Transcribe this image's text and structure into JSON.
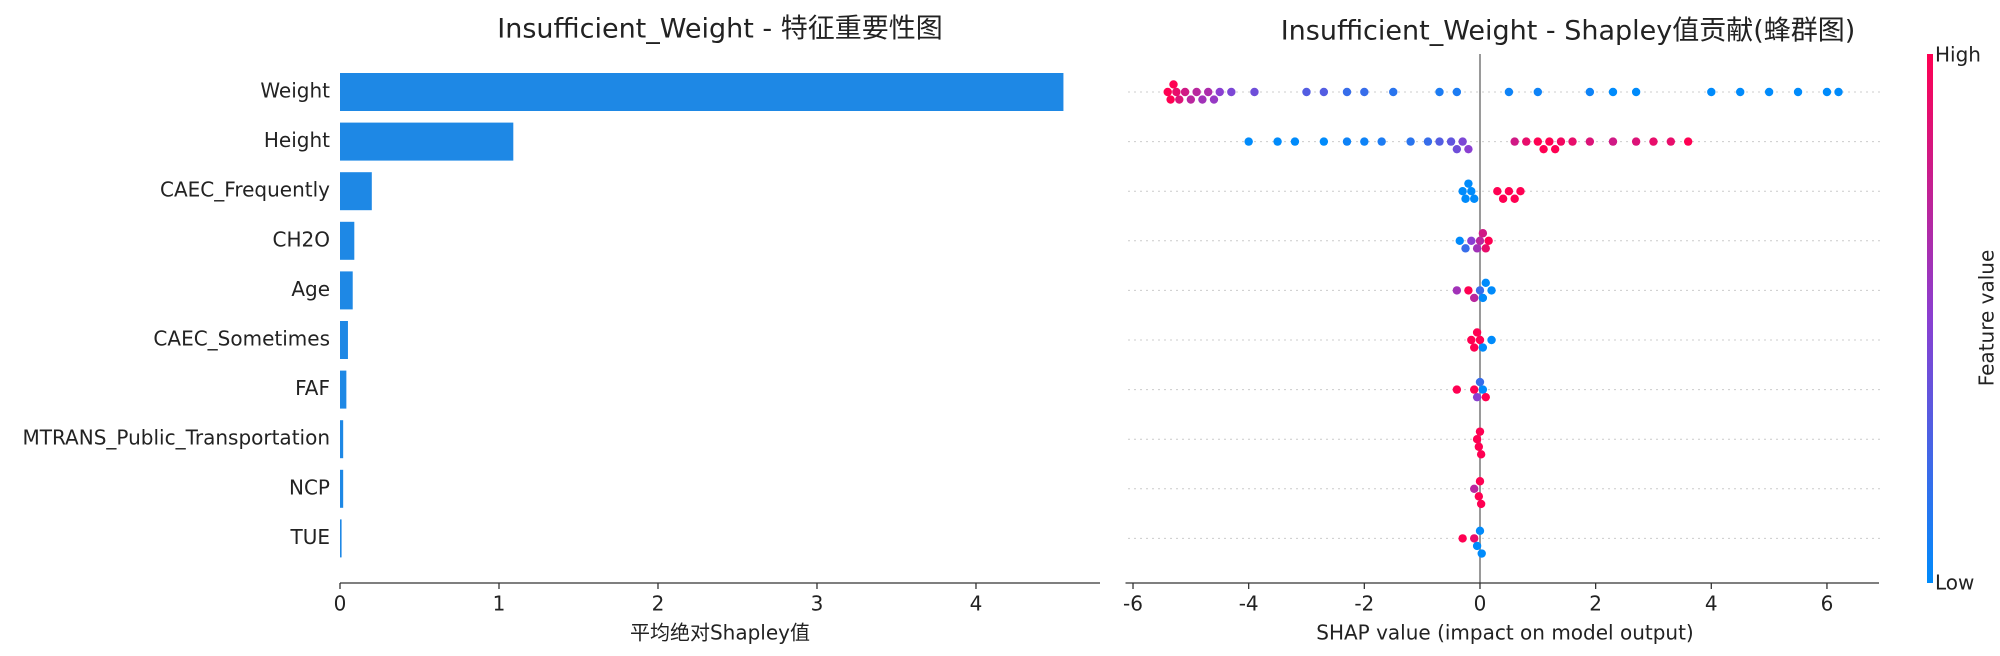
{
  "chart_data": [
    {
      "type": "barh",
      "title": "Insufficient_Weight - 特征重要性图",
      "xlabel": "平均绝对Shapley值",
      "categories": [
        "Weight",
        "Height",
        "CAEC_Frequently",
        "CH2O",
        "Age",
        "CAEC_Sometimes",
        "FAF",
        "MTRANS_Public_Transportation",
        "NCP",
        "TUE"
      ],
      "values": [
        4.55,
        1.09,
        0.2,
        0.09,
        0.08,
        0.05,
        0.04,
        0.02,
        0.02,
        0.01
      ],
      "color": "#1e88e5",
      "xlim": [
        0,
        4.78
      ],
      "xticks": [
        0,
        1,
        2,
        3,
        4
      ]
    },
    {
      "type": "beeswarm",
      "title": "Insufficient_Weight - Shapley值贡献(蜂群图)",
      "xlabel": "SHAP value (impact on model output)",
      "xlim": [
        -6.13,
        6.9
      ],
      "xticks": [
        -6,
        -4,
        -2,
        0,
        2,
        4,
        6
      ],
      "colormap": [
        "#008bfb",
        "#8a3fd1",
        "#ff0052"
      ],
      "colorbar_high": "High",
      "colorbar_low": "Low",
      "colorbar_label": "Feature value",
      "points": [
        {
          "x": [
            -5.4,
            -5.35,
            -5.3,
            -5.25,
            -5.2,
            -5.1,
            -5.0,
            -4.9,
            -4.8,
            -4.7,
            -4.6,
            -4.5,
            -4.3,
            -3.9,
            -3.0,
            -2.7,
            -2.3,
            -2.0,
            -1.5,
            -0.7,
            -0.4,
            0.5,
            1.0,
            1.9,
            2.3,
            2.7,
            4.0,
            4.5,
            5.0,
            5.5,
            6.0,
            6.2
          ],
          "feature_values": [
            1,
            1,
            1,
            0.9,
            0.85,
            0.8,
            0.7,
            0.7,
            0.6,
            0.65,
            0.55,
            0.5,
            0.45,
            0.4,
            0.3,
            0.3,
            0.2,
            0.2,
            0.15,
            0.1,
            0.1,
            0.05,
            0.05,
            0.05,
            0,
            0,
            0,
            0,
            0,
            0,
            0,
            0
          ]
        },
        {
          "x": [
            -4.0,
            -3.5,
            -3.2,
            -2.7,
            -2.3,
            -2.0,
            -1.7,
            -1.2,
            -0.9,
            -0.7,
            -0.5,
            -0.4,
            -0.3,
            -0.2,
            0.6,
            0.8,
            1.0,
            1.1,
            1.2,
            1.3,
            1.4,
            1.6,
            1.9,
            2.3,
            2.7,
            3.0,
            3.3,
            3.6
          ],
          "feature_values": [
            0,
            0,
            0,
            0,
            0.05,
            0.05,
            0.1,
            0.15,
            0.2,
            0.3,
            0.35,
            0.4,
            0.45,
            0.5,
            0.8,
            0.9,
            1,
            1,
            1,
            1,
            0.95,
            0.9,
            0.85,
            0.8,
            0.85,
            0.9,
            0.9,
            1
          ]
        },
        {
          "x": [
            -0.3,
            -0.25,
            -0.2,
            -0.15,
            -0.1,
            0.3,
            0.4,
            0.5,
            0.6,
            0.7
          ],
          "feature_values": [
            0,
            0,
            0,
            0,
            0,
            1,
            1,
            1,
            1,
            1
          ]
        },
        {
          "x": [
            -0.35,
            -0.25,
            -0.15,
            -0.05,
            0.0,
            0.05,
            0.1,
            0.15
          ],
          "feature_values": [
            0,
            0.2,
            0.5,
            0.6,
            0.7,
            0.8,
            0.9,
            1
          ]
        },
        {
          "x": [
            -0.4,
            -0.2,
            -0.1,
            0.0,
            0.05,
            0.1,
            0.2
          ],
          "feature_values": [
            0.6,
            1,
            0.7,
            0.2,
            0,
            0,
            0
          ]
        },
        {
          "x": [
            -0.15,
            -0.1,
            -0.05,
            0.0,
            0.05,
            0.2
          ],
          "feature_values": [
            1,
            1,
            1,
            1,
            0,
            0
          ]
        },
        {
          "x": [
            -0.4,
            -0.1,
            -0.05,
            0.0,
            0.05,
            0.1
          ],
          "feature_values": [
            1,
            1,
            0.5,
            0.2,
            0,
            1
          ]
        },
        {
          "x": [
            -0.05,
            -0.02,
            0.0,
            0.02
          ],
          "feature_values": [
            1,
            1,
            1,
            1
          ]
        },
        {
          "x": [
            -0.1,
            -0.02,
            0.0,
            0.02
          ],
          "feature_values": [
            0.7,
            1,
            1,
            1
          ]
        },
        {
          "x": [
            -0.3,
            -0.1,
            -0.05,
            0.0,
            0.03
          ],
          "feature_values": [
            1,
            0.9,
            0,
            0,
            0
          ]
        }
      ]
    }
  ]
}
